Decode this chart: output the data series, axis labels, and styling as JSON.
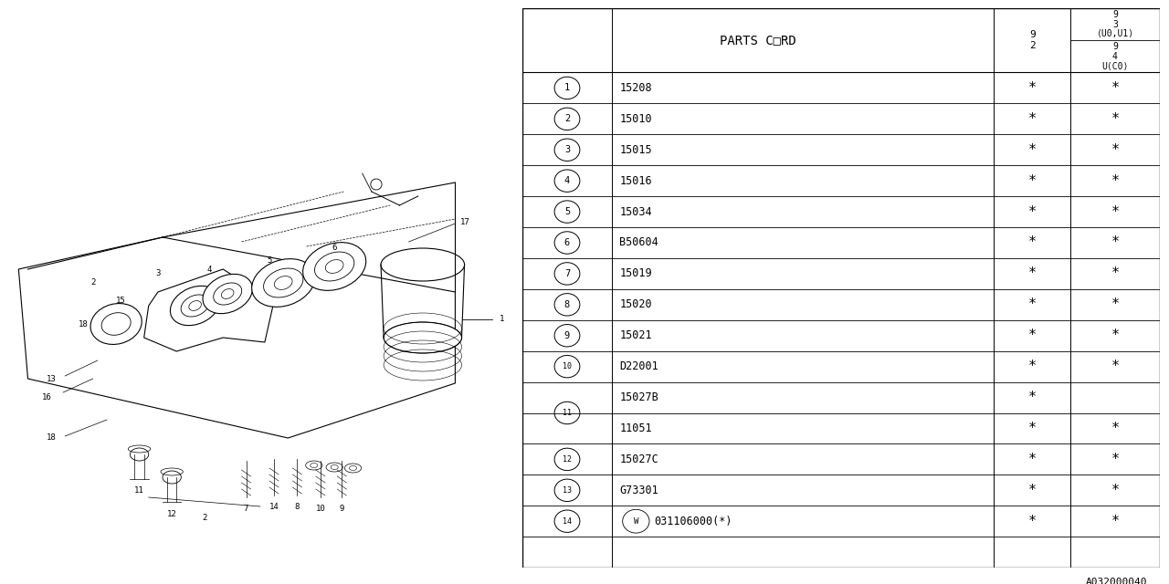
{
  "bg_color": "#ffffff",
  "line_color": "#000000",
  "col_header": "PARTS C□RD",
  "watermark": "A032000040",
  "star": "*",
  "display_rows": [
    {
      "num": "1",
      "code": "15208",
      "c2": true,
      "c3": true,
      "span": false,
      "is_sub": false,
      "circled_w": false
    },
    {
      "num": "2",
      "code": "15010",
      "c2": true,
      "c3": true,
      "span": false,
      "is_sub": false,
      "circled_w": false
    },
    {
      "num": "3",
      "code": "15015",
      "c2": true,
      "c3": true,
      "span": false,
      "is_sub": false,
      "circled_w": false
    },
    {
      "num": "4",
      "code": "15016",
      "c2": true,
      "c3": true,
      "span": false,
      "is_sub": false,
      "circled_w": false
    },
    {
      "num": "5",
      "code": "15034",
      "c2": true,
      "c3": true,
      "span": false,
      "is_sub": false,
      "circled_w": false
    },
    {
      "num": "6",
      "code": "B50604",
      "c2": true,
      "c3": true,
      "span": false,
      "is_sub": false,
      "circled_w": false
    },
    {
      "num": "7",
      "code": "15019",
      "c2": true,
      "c3": true,
      "span": false,
      "is_sub": false,
      "circled_w": false
    },
    {
      "num": "8",
      "code": "15020",
      "c2": true,
      "c3": true,
      "span": false,
      "is_sub": false,
      "circled_w": false
    },
    {
      "num": "9",
      "code": "15021",
      "c2": true,
      "c3": true,
      "span": false,
      "is_sub": false,
      "circled_w": false
    },
    {
      "num": "10",
      "code": "D22001",
      "c2": true,
      "c3": true,
      "span": false,
      "is_sub": false,
      "circled_w": false
    },
    {
      "num": "11",
      "code": "15027B",
      "c2": true,
      "c3": false,
      "span": true,
      "is_sub": false,
      "circled_w": false
    },
    {
      "num": null,
      "code": "11051",
      "c2": true,
      "c3": true,
      "span": false,
      "is_sub": true,
      "circled_w": false
    },
    {
      "num": "12",
      "code": "15027C",
      "c2": true,
      "c3": true,
      "span": false,
      "is_sub": false,
      "circled_w": false
    },
    {
      "num": "13",
      "code": "G73301",
      "c2": true,
      "c3": true,
      "span": false,
      "is_sub": false,
      "circled_w": false
    },
    {
      "num": "14",
      "code": "031106000(*)",
      "c2": true,
      "c3": true,
      "span": false,
      "is_sub": false,
      "circled_w": true
    }
  ]
}
